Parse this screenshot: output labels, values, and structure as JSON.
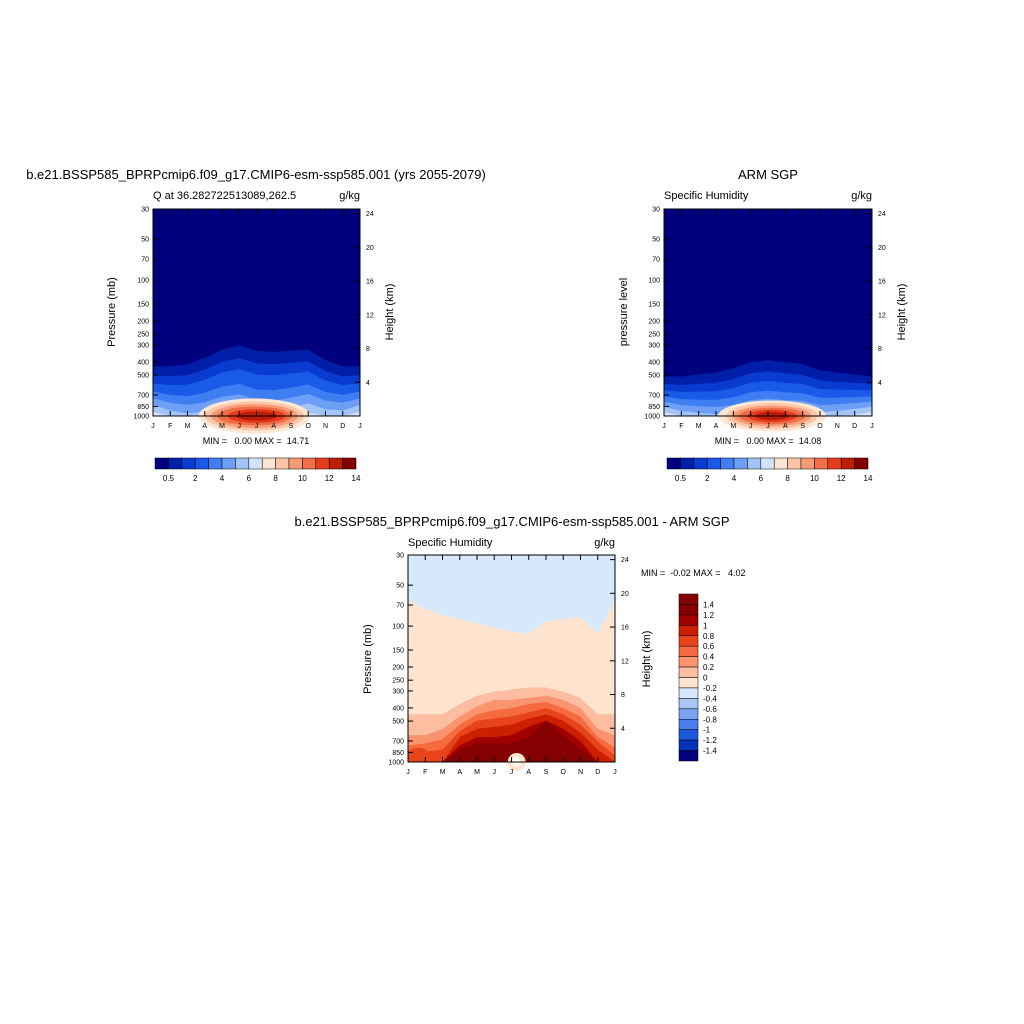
{
  "chart_data": [
    {
      "type": "heatmap",
      "title": "b.e21.BSSP585_BPRPcmip6.f09_g17.CMIP6-esm-ssp585.001 (yrs 2055-2079)",
      "left_subtitle": "Q at 36.282722513089,262.5",
      "right_subtitle": "g/kg",
      "ylabel": "Pressure (mb)",
      "y2label": "Height (km)",
      "x_ticks": [
        "J",
        "F",
        "M",
        "A",
        "M",
        "J",
        "J",
        "A",
        "S",
        "O",
        "N",
        "D",
        "J"
      ],
      "y_ticks": [
        30,
        50,
        70,
        100,
        150,
        200,
        250,
        300,
        400,
        500,
        700,
        850,
        1000
      ],
      "y2_ticks": [
        24,
        20,
        16,
        12,
        8,
        4
      ],
      "min_max_text": "MIN =   0.00 MAX =  14.71",
      "colorbar_labels": [
        "0.5",
        "2",
        "4",
        "6",
        "8",
        "10",
        "12",
        "14"
      ],
      "surface_max": [
        2,
        3,
        4,
        6,
        8.5,
        11,
        13.8,
        14.7,
        13.5,
        10,
        7,
        4,
        2
      ],
      "scale": {
        "type": "log-pressure",
        "ylim": [
          1000,
          30
        ]
      }
    },
    {
      "type": "heatmap",
      "title": "ARM SGP",
      "left_subtitle": "Specific Humidity",
      "right_subtitle": "g/kg",
      "ylabel": "pressure level",
      "y2label": "Height (km)",
      "x_ticks": [
        "J",
        "F",
        "M",
        "A",
        "M",
        "J",
        "J",
        "A",
        "S",
        "O",
        "N",
        "D",
        "J"
      ],
      "y_ticks": [
        30,
        50,
        70,
        100,
        150,
        200,
        250,
        300,
        400,
        500,
        700,
        850,
        1000
      ],
      "y2_ticks": [
        24,
        20,
        16,
        12,
        8,
        4
      ],
      "min_max_text": "MIN =   0.00 MAX =  14.08",
      "colorbar_labels": [
        "0.5",
        "2",
        "4",
        "6",
        "8",
        "10",
        "12",
        "14"
      ],
      "surface_max": [
        2,
        3,
        4,
        6,
        8.5,
        11,
        13.2,
        14.1,
        12.5,
        9,
        6,
        3.5,
        2
      ],
      "scale": {
        "type": "log-pressure",
        "ylim": [
          1000,
          30
        ]
      }
    },
    {
      "type": "heatmap",
      "title": "b.e21.BSSP585_BPRPcmip6.f09_g17.CMIP6-esm-ssp585.001 - ARM SGP",
      "left_subtitle": "Specific Humidity",
      "right_subtitle": "g/kg",
      "ylabel": "Pressure (mb)",
      "y2label": "Height (km)",
      "x_ticks": [
        "J",
        "F",
        "M",
        "A",
        "M",
        "J",
        "J",
        "A",
        "S",
        "O",
        "N",
        "D",
        "J"
      ],
      "y_ticks": [
        30,
        50,
        70,
        100,
        150,
        200,
        250,
        300,
        400,
        500,
        700,
        850,
        1000
      ],
      "y2_ticks": [
        24,
        20,
        16,
        12,
        8,
        4
      ],
      "min_max_text": "MIN =  -0.02 MAX =   4.02",
      "colorbar_labels": [
        "1.4",
        "1.2",
        "1",
        "0.8",
        "0.6",
        "0.4",
        "0.2",
        "0",
        "-0.2",
        "-0.4",
        "-0.6",
        "-0.8",
        "-1",
        "-1.2",
        "-1.4"
      ],
      "scale": {
        "type": "log-pressure",
        "ylim": [
          1000,
          30
        ]
      }
    }
  ],
  "colors": {
    "blue_red_scale": [
      "#00007f",
      "#001fa8",
      "#0a3bd0",
      "#1a5ae8",
      "#3e7ef2",
      "#6e9ff6",
      "#a4c4f7",
      "#d2e4fb",
      "#fde6d3",
      "#fcc5a6",
      "#f89c78",
      "#f06d48",
      "#e43c1d",
      "#bd1c07",
      "#850000"
    ],
    "diff_scale": [
      "#850000",
      "#a10000",
      "#cc1f00",
      "#e8441c",
      "#f66a3f",
      "#fa9370",
      "#fdbda0",
      "#fee3cf",
      "#d6e8fb",
      "#a7c6f7",
      "#7aa3f1",
      "#4b7ded",
      "#1c57dd",
      "#0632b8",
      "#00007f"
    ]
  }
}
